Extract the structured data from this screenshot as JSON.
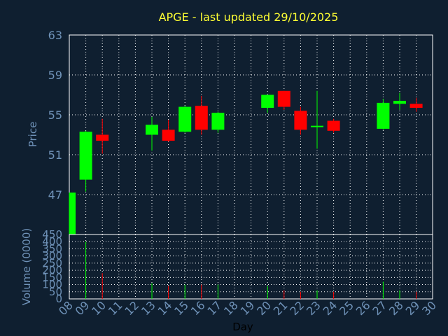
{
  "chart_data": {
    "type": "candlestick",
    "title": "APGE - last updated 29/10/2025",
    "ylabel": "Price",
    "volume_label": "Volume (0000)",
    "xlabel": "Day",
    "price_ylim": [
      43,
      63
    ],
    "price_ticks": [
      "63",
      "59",
      "55",
      "51",
      "47"
    ],
    "volume_ylim": [
      0,
      450
    ],
    "volume_ticks": [
      "450",
      "400",
      "350",
      "300",
      "250",
      "200",
      "150",
      "100",
      "50",
      "0"
    ],
    "day_labels": [
      "08",
      "09",
      "10",
      "11",
      "12",
      "13",
      "14",
      "15",
      "16",
      "17",
      "18",
      "19",
      "20",
      "21",
      "22",
      "23",
      "24",
      "25",
      "26",
      "27",
      "28",
      "29",
      "30"
    ],
    "grid": true,
    "up_color": "#00ff00",
    "down_color": "#ff0000",
    "candles": [
      {
        "day": "08",
        "open": 43.0,
        "close": 47.2,
        "high": 47.2,
        "low": 43.0,
        "volume": 0
      },
      {
        "day": "09",
        "open": 48.5,
        "close": 53.3,
        "high": 53.4,
        "low": 47.3,
        "volume": 400
      },
      {
        "day": "10",
        "open": 53.0,
        "close": 52.4,
        "high": 54.6,
        "low": 51.1,
        "volume": 180
      },
      {
        "day": "13",
        "open": 53.0,
        "close": 54.0,
        "high": 54.8,
        "low": 51.4,
        "volume": 110
      },
      {
        "day": "14",
        "open": 53.5,
        "close": 52.4,
        "high": 54.5,
        "low": 52.3,
        "volume": 90
      },
      {
        "day": "15",
        "open": 53.3,
        "close": 55.8,
        "high": 55.9,
        "low": 53.2,
        "volume": 100
      },
      {
        "day": "16",
        "open": 55.9,
        "close": 53.5,
        "high": 56.9,
        "low": 53.0,
        "volume": 100
      },
      {
        "day": "17",
        "open": 53.5,
        "close": 55.2,
        "high": 55.3,
        "low": 53.2,
        "volume": 100
      },
      {
        "day": "20",
        "open": 55.7,
        "close": 57.0,
        "high": 57.0,
        "low": 55.2,
        "volume": 90
      },
      {
        "day": "21",
        "open": 57.4,
        "close": 55.8,
        "high": 57.4,
        "low": 55.5,
        "volume": 60
      },
      {
        "day": "22",
        "open": 55.4,
        "close": 53.5,
        "high": 55.8,
        "low": 53.0,
        "volume": 50
      },
      {
        "day": "23",
        "open": 53.8,
        "close": 53.9,
        "high": 57.4,
        "low": 51.6,
        "volume": 60
      },
      {
        "day": "24",
        "open": 54.4,
        "close": 53.4,
        "high": 54.6,
        "low": 53.2,
        "volume": 50
      },
      {
        "day": "27",
        "open": 53.6,
        "close": 56.2,
        "high": 56.6,
        "low": 53.5,
        "volume": 120
      },
      {
        "day": "28",
        "open": 56.1,
        "close": 56.4,
        "high": 57.2,
        "low": 55.5,
        "volume": 60
      },
      {
        "day": "29",
        "open": 56.1,
        "close": 55.7,
        "high": 56.7,
        "low": 55.3,
        "volume": 50
      }
    ]
  }
}
